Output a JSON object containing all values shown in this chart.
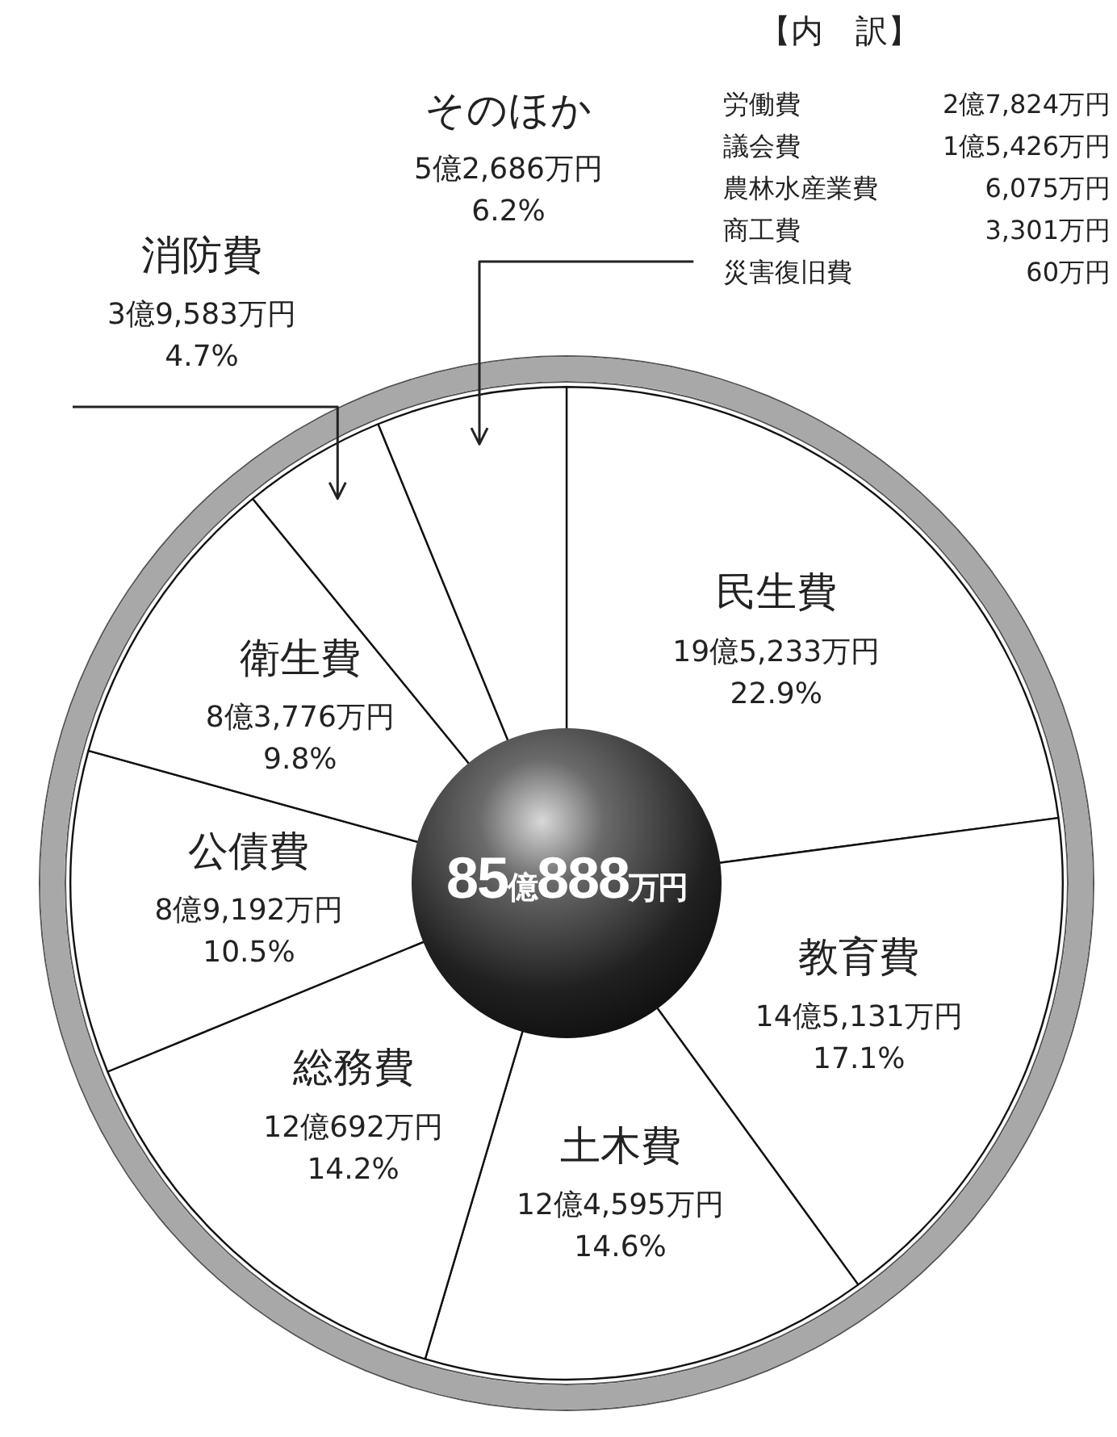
{
  "chart_data": {
    "type": "pie",
    "categories": [
      "民生費",
      "教育費",
      "土木費",
      "総務費",
      "公債費",
      "衛生費",
      "消防費",
      "そのほか"
    ],
    "values": [
      22.9,
      17.1,
      14.6,
      14.2,
      10.5,
      9.8,
      4.7,
      6.2
    ],
    "value_labels": [
      "19億5,233万円\n22.9%",
      "14億5,131万円\n17.1%",
      "12億4,595万円\n14.6%",
      "12億692万円\n14.2%",
      "8億9,192万円\n10.5%",
      "8億3,776万円\n9.8%",
      "3億9,583万円\n4.7%",
      "5億2,686万円\n6.2%"
    ],
    "colors": [
      "#ffffff",
      "#ffffff",
      "#ffffff",
      "#ffffff",
      "#ffffff",
      "#ffffff",
      "#ffffff",
      "#ffffff"
    ],
    "legend": false,
    "annotations": [
      "85億888万円",
      "【内　訳】",
      "労働費 2億7,824万円",
      "議会費 1億5,426万円",
      "農林水産業費 6,075万円",
      "商工費 3,301万円",
      "災害復旧費 60万円"
    ]
  }
}
